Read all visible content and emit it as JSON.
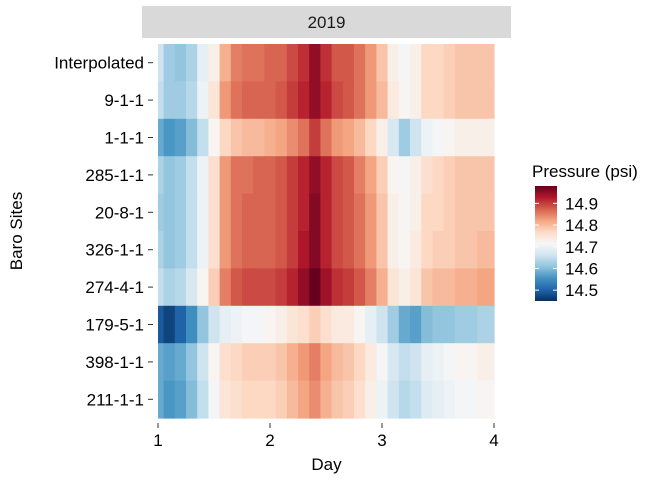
{
  "chart_data": {
    "type": "heatmap",
    "facet_label": "2019",
    "xlabel": "Day",
    "ylabel": "Baro Sites",
    "xlim": [
      1,
      4
    ],
    "x_ticks": [
      "1",
      "2",
      "3",
      "4"
    ],
    "rows": [
      "Interpolated",
      "9-1-1",
      "1-1-1",
      "285-1-1",
      "20-8-1",
      "326-1-1",
      "274-4-1",
      "179-5-1",
      "398-1-1",
      "211-1-1"
    ],
    "x": [
      1.0,
      1.1,
      1.2,
      1.3,
      1.4,
      1.5,
      1.6,
      1.7,
      1.8,
      1.9,
      2.0,
      2.1,
      2.2,
      2.3,
      2.4,
      2.5,
      2.6,
      2.7,
      2.8,
      2.9,
      3.0,
      3.1,
      3.2,
      3.3,
      3.4,
      3.5,
      3.6,
      3.7,
      3.8,
      3.9,
      4.0
    ],
    "values": [
      [
        14.66,
        14.62,
        14.61,
        14.63,
        14.69,
        14.73,
        14.81,
        14.85,
        14.86,
        14.86,
        14.87,
        14.87,
        14.89,
        14.91,
        14.95,
        14.91,
        14.88,
        14.88,
        14.86,
        14.83,
        14.79,
        14.73,
        14.71,
        14.73,
        14.77,
        14.77,
        14.78,
        14.79,
        14.79,
        14.79,
        14.79
      ],
      [
        14.65,
        14.62,
        14.62,
        14.64,
        14.7,
        14.75,
        14.83,
        14.86,
        14.87,
        14.87,
        14.87,
        14.88,
        14.9,
        14.92,
        14.95,
        14.92,
        14.89,
        14.88,
        14.86,
        14.83,
        14.8,
        14.74,
        14.72,
        14.73,
        14.77,
        14.77,
        14.78,
        14.79,
        14.79,
        14.79,
        14.79
      ],
      [
        14.58,
        14.56,
        14.57,
        14.6,
        14.65,
        14.72,
        14.77,
        14.79,
        14.8,
        14.8,
        14.81,
        14.82,
        14.84,
        14.86,
        14.9,
        14.86,
        14.83,
        14.82,
        14.8,
        14.77,
        14.73,
        14.67,
        14.62,
        14.66,
        14.7,
        14.71,
        14.72,
        14.73,
        14.73,
        14.73,
        14.73
      ],
      [
        14.63,
        14.61,
        14.62,
        14.65,
        14.7,
        14.76,
        14.83,
        14.86,
        14.86,
        14.87,
        14.87,
        14.88,
        14.9,
        14.92,
        14.95,
        14.92,
        14.89,
        14.88,
        14.85,
        14.82,
        14.78,
        14.72,
        14.71,
        14.73,
        14.76,
        14.77,
        14.78,
        14.79,
        14.79,
        14.79,
        14.79
      ],
      [
        14.62,
        14.61,
        14.62,
        14.65,
        14.7,
        14.76,
        14.83,
        14.86,
        14.87,
        14.87,
        14.87,
        14.88,
        14.9,
        14.92,
        14.96,
        14.92,
        14.89,
        14.88,
        14.86,
        14.83,
        14.79,
        14.73,
        14.72,
        14.73,
        14.77,
        14.77,
        14.78,
        14.79,
        14.79,
        14.79,
        14.79
      ],
      [
        14.63,
        14.61,
        14.62,
        14.65,
        14.7,
        14.76,
        14.83,
        14.86,
        14.87,
        14.87,
        14.87,
        14.88,
        14.9,
        14.93,
        14.96,
        14.92,
        14.89,
        14.88,
        14.86,
        14.83,
        14.79,
        14.73,
        14.72,
        14.74,
        14.77,
        14.78,
        14.78,
        14.79,
        14.79,
        14.8,
        14.8
      ],
      [
        14.65,
        14.63,
        14.64,
        14.67,
        14.72,
        14.78,
        14.85,
        14.88,
        14.89,
        14.89,
        14.89,
        14.9,
        14.92,
        14.95,
        14.98,
        14.94,
        14.91,
        14.9,
        14.88,
        14.85,
        14.81,
        14.75,
        14.73,
        14.75,
        14.79,
        14.8,
        14.8,
        14.81,
        14.81,
        14.82,
        14.82
      ],
      [
        14.49,
        14.47,
        14.5,
        14.55,
        14.61,
        14.66,
        14.69,
        14.7,
        14.71,
        14.71,
        14.72,
        14.73,
        14.75,
        14.76,
        14.78,
        14.76,
        14.74,
        14.74,
        14.72,
        14.69,
        14.66,
        14.62,
        14.58,
        14.57,
        14.6,
        14.61,
        14.61,
        14.62,
        14.62,
        14.63,
        14.63
      ],
      [
        14.58,
        14.57,
        14.58,
        14.61,
        14.66,
        14.72,
        14.76,
        14.77,
        14.78,
        14.78,
        14.78,
        14.79,
        14.81,
        14.83,
        14.85,
        14.82,
        14.8,
        14.79,
        14.77,
        14.74,
        14.71,
        14.67,
        14.65,
        14.66,
        14.69,
        14.7,
        14.71,
        14.72,
        14.72,
        14.73,
        14.73
      ],
      [
        14.58,
        14.56,
        14.57,
        14.6,
        14.65,
        14.71,
        14.75,
        14.76,
        14.77,
        14.77,
        14.77,
        14.78,
        14.8,
        14.82,
        14.84,
        14.81,
        14.79,
        14.78,
        14.76,
        14.73,
        14.7,
        14.66,
        14.64,
        14.65,
        14.68,
        14.69,
        14.7,
        14.71,
        14.71,
        14.72,
        14.72
      ]
    ],
    "legend": {
      "title": "Pressure (psi)",
      "placement": "right",
      "range": [
        14.45,
        14.98
      ],
      "ticks": [
        "14.5",
        "14.6",
        "14.7",
        "14.8",
        "14.9"
      ],
      "colors": [
        "#053061",
        "#2166ac",
        "#4393c3",
        "#92c5de",
        "#d1e5f0",
        "#f7f7f7",
        "#fddbc7",
        "#f4a582",
        "#d6604d",
        "#b2182b",
        "#67001f"
      ]
    }
  }
}
